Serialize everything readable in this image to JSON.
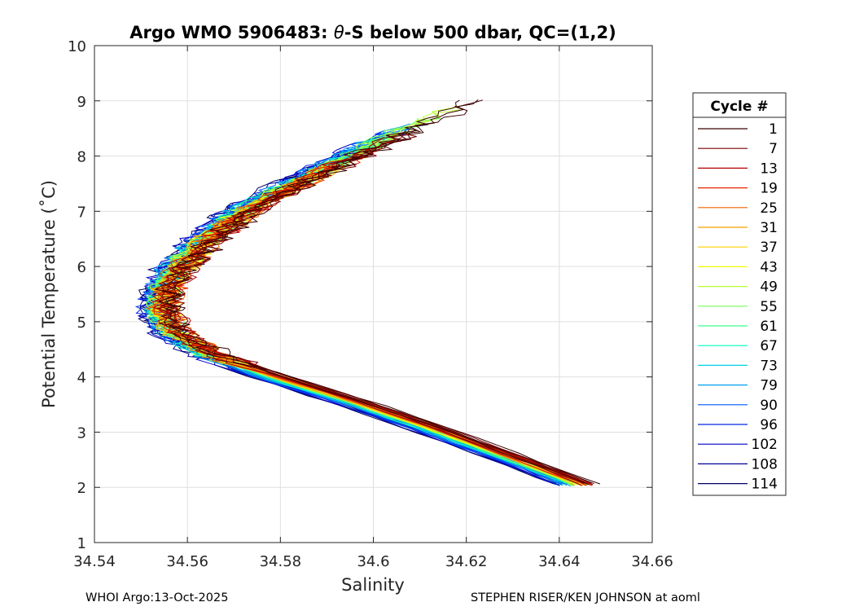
{
  "chart_data": {
    "type": "line",
    "title": "Argo WMO 5906483: θ-S below 500 dbar,  QC=(1,2)",
    "title_prefix": "Argo WMO 5906483: ",
    "title_theta": "θ",
    "title_suffix": "-S below 500 dbar,  QC=(1,2)",
    "xlabel": "Salinity",
    "ylabel": "Potential Temperature (˚C)",
    "xlim": [
      34.54,
      34.66
    ],
    "ylim": [
      1,
      10
    ],
    "xticks": [
      34.54,
      34.56,
      34.58,
      34.6,
      34.62,
      34.64,
      34.66
    ],
    "xtick_labels": [
      "34.54",
      "34.56",
      "34.58",
      "34.6",
      "34.62",
      "34.64",
      "34.66"
    ],
    "yticks": [
      1,
      2,
      3,
      4,
      5,
      6,
      7,
      8,
      9,
      10
    ],
    "ytick_labels": [
      "1",
      "2",
      "3",
      "4",
      "5",
      "6",
      "7",
      "8",
      "9",
      "10"
    ],
    "grid": true,
    "legend": {
      "title": "Cycle #",
      "placement": "outside-right",
      "entries": [
        "1",
        "7",
        "13",
        "19",
        "25",
        "31",
        "37",
        "43",
        "49",
        "55",
        "61",
        "67",
        "73",
        "79",
        "90",
        "96",
        "102",
        "108",
        "114"
      ],
      "colors": [
        "#3c0000",
        "#780000",
        "#b40000",
        "#e62800",
        "#f06400",
        "#f5a000",
        "#ffd200",
        "#f0ff00",
        "#b4ff32",
        "#78ff5a",
        "#3cff8c",
        "#00ffbe",
        "#00d2e6",
        "#00a0f0",
        "#005aff",
        "#0028e6",
        "#0000c8",
        "#000096",
        "#000064"
      ]
    },
    "series_profile": {
      "description": "Mean θ-S curve shared by all cycles; each cycle is offset slightly in salinity",
      "theta": [
        2.05,
        2.5,
        3.0,
        3.5,
        4.0,
        4.4,
        4.8,
        5.2,
        5.6,
        6.0,
        6.5,
        7.0,
        7.5,
        8.0,
        8.5,
        9.0
      ],
      "salinity": [
        34.644,
        34.63,
        34.614,
        34.597,
        34.578,
        34.565,
        34.557,
        34.554,
        34.555,
        34.558,
        34.564,
        34.572,
        34.583,
        34.595,
        34.607,
        34.62
      ],
      "cycle_max_theta": [
        9.05,
        8.5,
        8.4,
        8.0,
        7.9,
        7.8,
        7.8,
        7.9,
        8.9,
        8.7,
        8.5,
        8.4,
        8.3,
        8.6,
        8.6,
        8.5,
        8.3,
        8.1,
        7.9
      ],
      "cycle_salinity_offset": [
        0.0035,
        0.003,
        0.0025,
        0.002,
        0.0018,
        0.0015,
        0.0012,
        0.001,
        0.0008,
        0.0005,
        0.0,
        -0.0005,
        -0.001,
        -0.0015,
        -0.002,
        -0.0025,
        -0.003,
        -0.0032,
        -0.0035
      ]
    },
    "footer_left": "WHOI Argo:13-Oct-2025",
    "footer_right": "STEPHEN RISER/KEN JOHNSON at aoml"
  }
}
